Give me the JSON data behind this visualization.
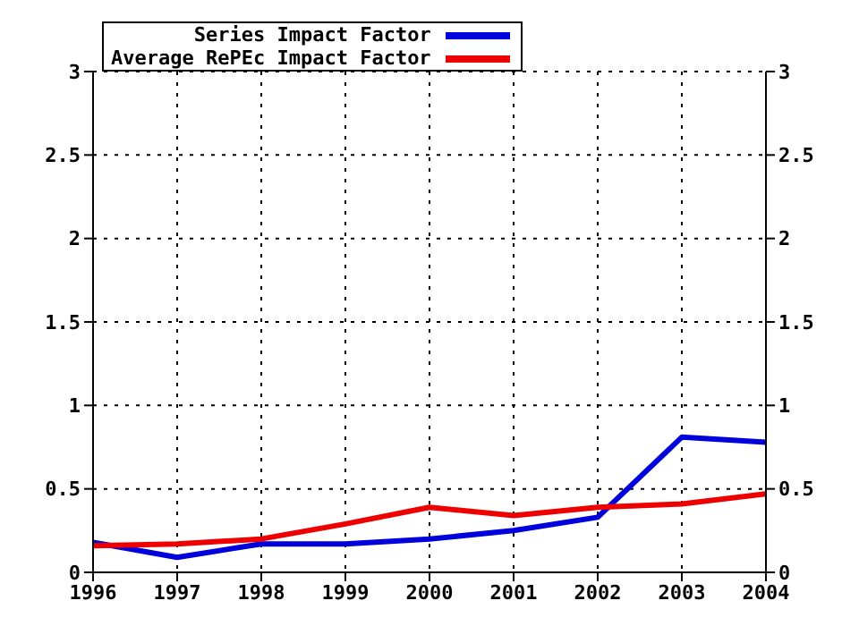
{
  "chart_data": {
    "type": "line",
    "x": [
      1996,
      1997,
      1998,
      1999,
      2000,
      2001,
      2002,
      2003,
      2004
    ],
    "series": [
      {
        "name": "Series Impact Factor",
        "color": "#0000dd",
        "values": [
          0.18,
          0.09,
          0.17,
          0.17,
          0.2,
          0.25,
          0.33,
          0.81,
          0.78
        ]
      },
      {
        "name": "Average RePEc Impact Factor",
        "color": "#ee0000",
        "values": [
          0.16,
          0.17,
          0.2,
          0.29,
          0.39,
          0.34,
          0.39,
          0.41,
          0.47
        ]
      }
    ],
    "xlim": [
      1996,
      2004
    ],
    "xticks": [
      1996,
      1997,
      1998,
      1999,
      2000,
      2001,
      2002,
      2003,
      2004
    ],
    "ylim": [
      0,
      3
    ],
    "yticks": [
      0,
      0.5,
      1,
      1.5,
      2,
      2.5,
      3
    ],
    "y2lim": [
      0,
      3
    ],
    "y2ticks": [
      0,
      0.5,
      1,
      1.5,
      2,
      2.5,
      3
    ],
    "grid": true,
    "legend": "top left",
    "marker": "none",
    "line_style": "solid"
  }
}
